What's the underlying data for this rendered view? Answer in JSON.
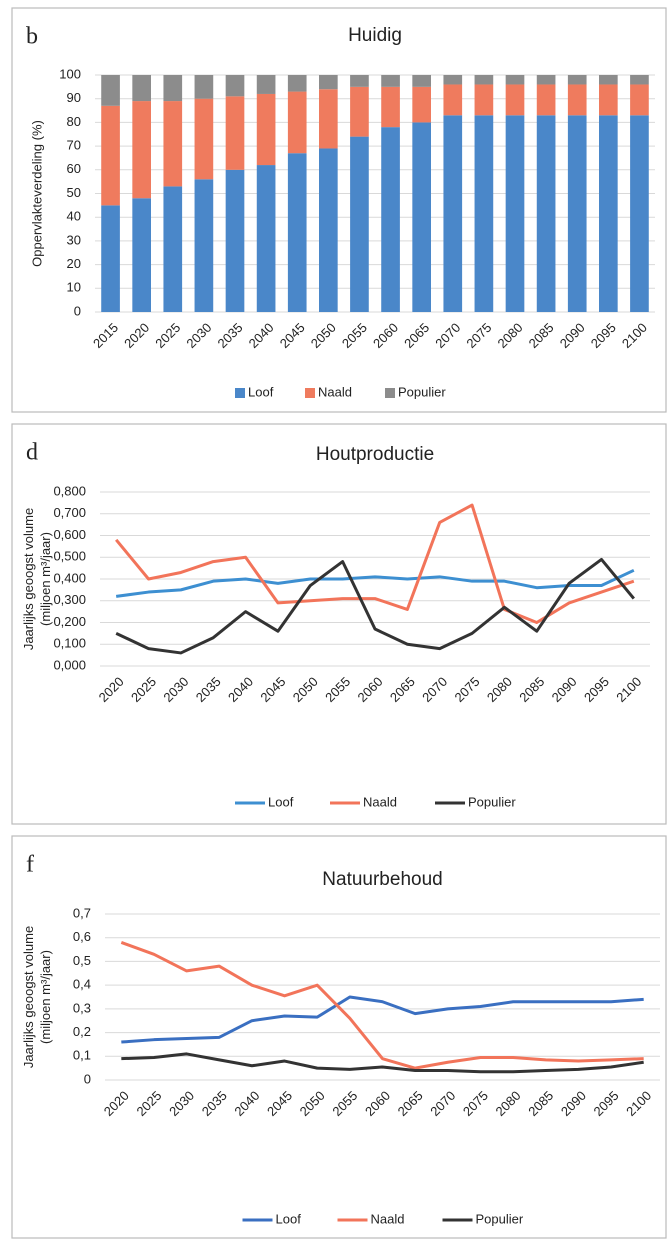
{
  "chart_data": [
    {
      "type": "bar",
      "stacked": true,
      "label": "b",
      "title": "Huidig",
      "ylabel": [
        "Oppervlakteverdeling (%)"
      ],
      "categories": [
        "2015",
        "2020",
        "2025",
        "2030",
        "2035",
        "2040",
        "2045",
        "2050",
        "2055",
        "2060",
        "2065",
        "2070",
        "2075",
        "2080",
        "2085",
        "2090",
        "2095",
        "2100"
      ],
      "series": [
        {
          "name": "Loof",
          "color": "#4a87c9",
          "values": [
            45,
            48,
            53,
            56,
            60,
            62,
            67,
            69,
            74,
            78,
            80,
            83,
            83,
            83,
            83,
            83,
            83,
            83
          ]
        },
        {
          "name": "Naald",
          "color": "#ef7b5e",
          "values": [
            42,
            41,
            36,
            34,
            31,
            30,
            26,
            25,
            21,
            17,
            15,
            13,
            13,
            13,
            13,
            13,
            13,
            13
          ]
        },
        {
          "name": "Populier",
          "color": "#8c8c8c",
          "values": [
            13,
            11,
            11,
            10,
            9,
            8,
            7,
            6,
            5,
            5,
            5,
            4,
            4,
            4,
            4,
            4,
            4,
            4
          ]
        }
      ],
      "ylim": [
        0,
        100
      ],
      "yticks": [
        0,
        10,
        20,
        30,
        40,
        50,
        60,
        70,
        80,
        90,
        100
      ],
      "grid": true
    },
    {
      "type": "line",
      "label": "d",
      "title": "Houtproductie",
      "ylabel": [
        "Jaarlijks geoogst volume",
        "(miljoen m³/jaar)"
      ],
      "categories": [
        "2020",
        "2025",
        "2030",
        "2035",
        "2040",
        "2045",
        "2050",
        "2055",
        "2060",
        "2065",
        "2070",
        "2075",
        "2080",
        "2085",
        "2090",
        "2095",
        "2100"
      ],
      "series": [
        {
          "name": "Loof",
          "color": "#3d8fd1",
          "values": [
            0.32,
            0.34,
            0.35,
            0.39,
            0.4,
            0.38,
            0.4,
            0.4,
            0.41,
            0.4,
            0.41,
            0.39,
            0.39,
            0.36,
            0.37,
            0.37,
            0.44
          ]
        },
        {
          "name": "Naald",
          "color": "#f2745a",
          "values": [
            0.58,
            0.4,
            0.43,
            0.48,
            0.5,
            0.29,
            0.3,
            0.31,
            0.31,
            0.26,
            0.66,
            0.74,
            0.26,
            0.2,
            0.29,
            0.34,
            0.39
          ]
        },
        {
          "name": "Populier",
          "color": "#333333",
          "values": [
            0.15,
            0.08,
            0.06,
            0.13,
            0.25,
            0.16,
            0.37,
            0.48,
            0.17,
            0.1,
            0.08,
            0.15,
            0.27,
            0.16,
            0.38,
            0.49,
            0.31
          ]
        }
      ],
      "ylim": [
        0,
        0.8
      ],
      "yticks": [
        {
          "value": 0,
          "label": "0,000"
        },
        {
          "value": 0.1,
          "label": "0,100"
        },
        {
          "value": 0.2,
          "label": "0,200"
        },
        {
          "value": 0.3,
          "label": "0,300"
        },
        {
          "value": 0.4,
          "label": "0,400"
        },
        {
          "value": 0.5,
          "label": "0,500"
        },
        {
          "value": 0.6,
          "label": "0,600"
        },
        {
          "value": 0.7,
          "label": "0,700"
        },
        {
          "value": 0.8,
          "label": "0,800"
        }
      ],
      "grid": true
    },
    {
      "type": "line",
      "label": "f",
      "title": "Natuurbehoud",
      "ylabel": [
        "Jaarlijks geoogst volume",
        "(miljoen m³/jaar)"
      ],
      "categories": [
        "2020",
        "2025",
        "2030",
        "2035",
        "2040",
        "2045",
        "2050",
        "2055",
        "2060",
        "2065",
        "2070",
        "2075",
        "2080",
        "2085",
        "2090",
        "2095",
        "2100"
      ],
      "series": [
        {
          "name": "Loof",
          "color": "#3a6fc1",
          "values": [
            0.16,
            0.17,
            0.175,
            0.18,
            0.25,
            0.27,
            0.265,
            0.35,
            0.33,
            0.28,
            0.3,
            0.31,
            0.33,
            0.33,
            0.33,
            0.33,
            0.34
          ]
        },
        {
          "name": "Naald",
          "color": "#f2745a",
          "values": [
            0.58,
            0.53,
            0.46,
            0.48,
            0.4,
            0.355,
            0.4,
            0.26,
            0.09,
            0.05,
            0.075,
            0.095,
            0.095,
            0.085,
            0.08,
            0.085,
            0.09
          ]
        },
        {
          "name": "Populier",
          "color": "#333333",
          "values": [
            0.09,
            0.095,
            0.11,
            0.085,
            0.06,
            0.08,
            0.05,
            0.045,
            0.055,
            0.04,
            0.04,
            0.035,
            0.035,
            0.04,
            0.045,
            0.055,
            0.075
          ]
        }
      ],
      "ylim": [
        0,
        0.7
      ],
      "yticks": [
        0,
        {
          "value": 0.1,
          "label": "0,1"
        },
        {
          "value": 0.2,
          "label": "0,2"
        },
        {
          "value": 0.3,
          "label": "0,3"
        },
        {
          "value": 0.4,
          "label": "0,4"
        },
        {
          "value": 0.5,
          "label": "0,5"
        },
        {
          "value": 0.6,
          "label": "0,6"
        },
        {
          "value": 0.7,
          "label": "0,7"
        }
      ],
      "grid": true
    }
  ]
}
